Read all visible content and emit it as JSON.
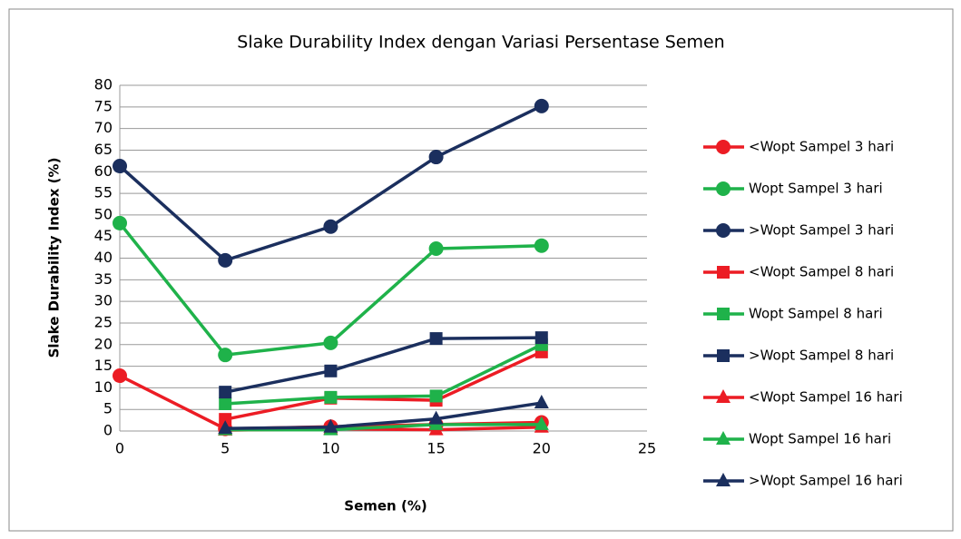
{
  "chart_data": {
    "type": "line",
    "title": "Slake Durability Index dengan Variasi Persentase Semen",
    "xlabel": "Semen (%)",
    "ylabel": "Slake Durability Index (%)",
    "x": [
      0,
      5,
      10,
      15,
      20
    ],
    "xlim": [
      0,
      25
    ],
    "xticks": [
      0,
      5,
      10,
      15,
      20,
      25
    ],
    "ylim": [
      0,
      80
    ],
    "yticks": [
      0,
      5,
      10,
      15,
      20,
      25,
      30,
      35,
      40,
      45,
      50,
      55,
      60,
      65,
      70,
      75,
      80
    ],
    "grid": true,
    "legend": "right",
    "series": [
      {
        "name": "<Wopt Sampel 3 hari",
        "color": "#ec1c24",
        "marker": "circle",
        "values": [
          12.8,
          0.5,
          1,
          1.5,
          2
        ]
      },
      {
        "name": "Wopt Sampel 3 hari",
        "color": "#1fb24a",
        "marker": "circle",
        "values": [
          48.1,
          17.6,
          20.4,
          42.2,
          42.9
        ]
      },
      {
        "name": ">Wopt Sampel 3 hari",
        "color": "#1b2f5e",
        "marker": "circle",
        "values": [
          61.3,
          39.5,
          47.3,
          63.4,
          75.2
        ]
      },
      {
        "name": "<Wopt Sampel 8 hari",
        "color": "#ec1c24",
        "marker": "square",
        "values": [
          null,
          2.7,
          7.6,
          7.1,
          18.3
        ]
      },
      {
        "name": "Wopt Sampel 8 hari",
        "color": "#1fb24a",
        "marker": "square",
        "values": [
          null,
          6.3,
          7.8,
          8.1,
          20
        ]
      },
      {
        "name": ">Wopt Sampel 8 hari",
        "color": "#1b2f5e",
        "marker": "square",
        "values": [
          null,
          9,
          13.9,
          21.4,
          21.6
        ]
      },
      {
        "name": "<Wopt Sampel 16 hari",
        "color": "#ec1c24",
        "marker": "triangle",
        "values": [
          null,
          0.2,
          0.5,
          0.3,
          0.9
        ]
      },
      {
        "name": "Wopt Sampel 16 hari",
        "color": "#1fb24a",
        "marker": "triangle",
        "values": [
          null,
          0.3,
          0.3,
          1.5,
          1.5
        ]
      },
      {
        "name": ">Wopt Sampel 16 hari",
        "color": "#1b2f5e",
        "marker": "triangle",
        "values": [
          null,
          0.6,
          0.9,
          2.8,
          6.5
        ]
      }
    ]
  }
}
